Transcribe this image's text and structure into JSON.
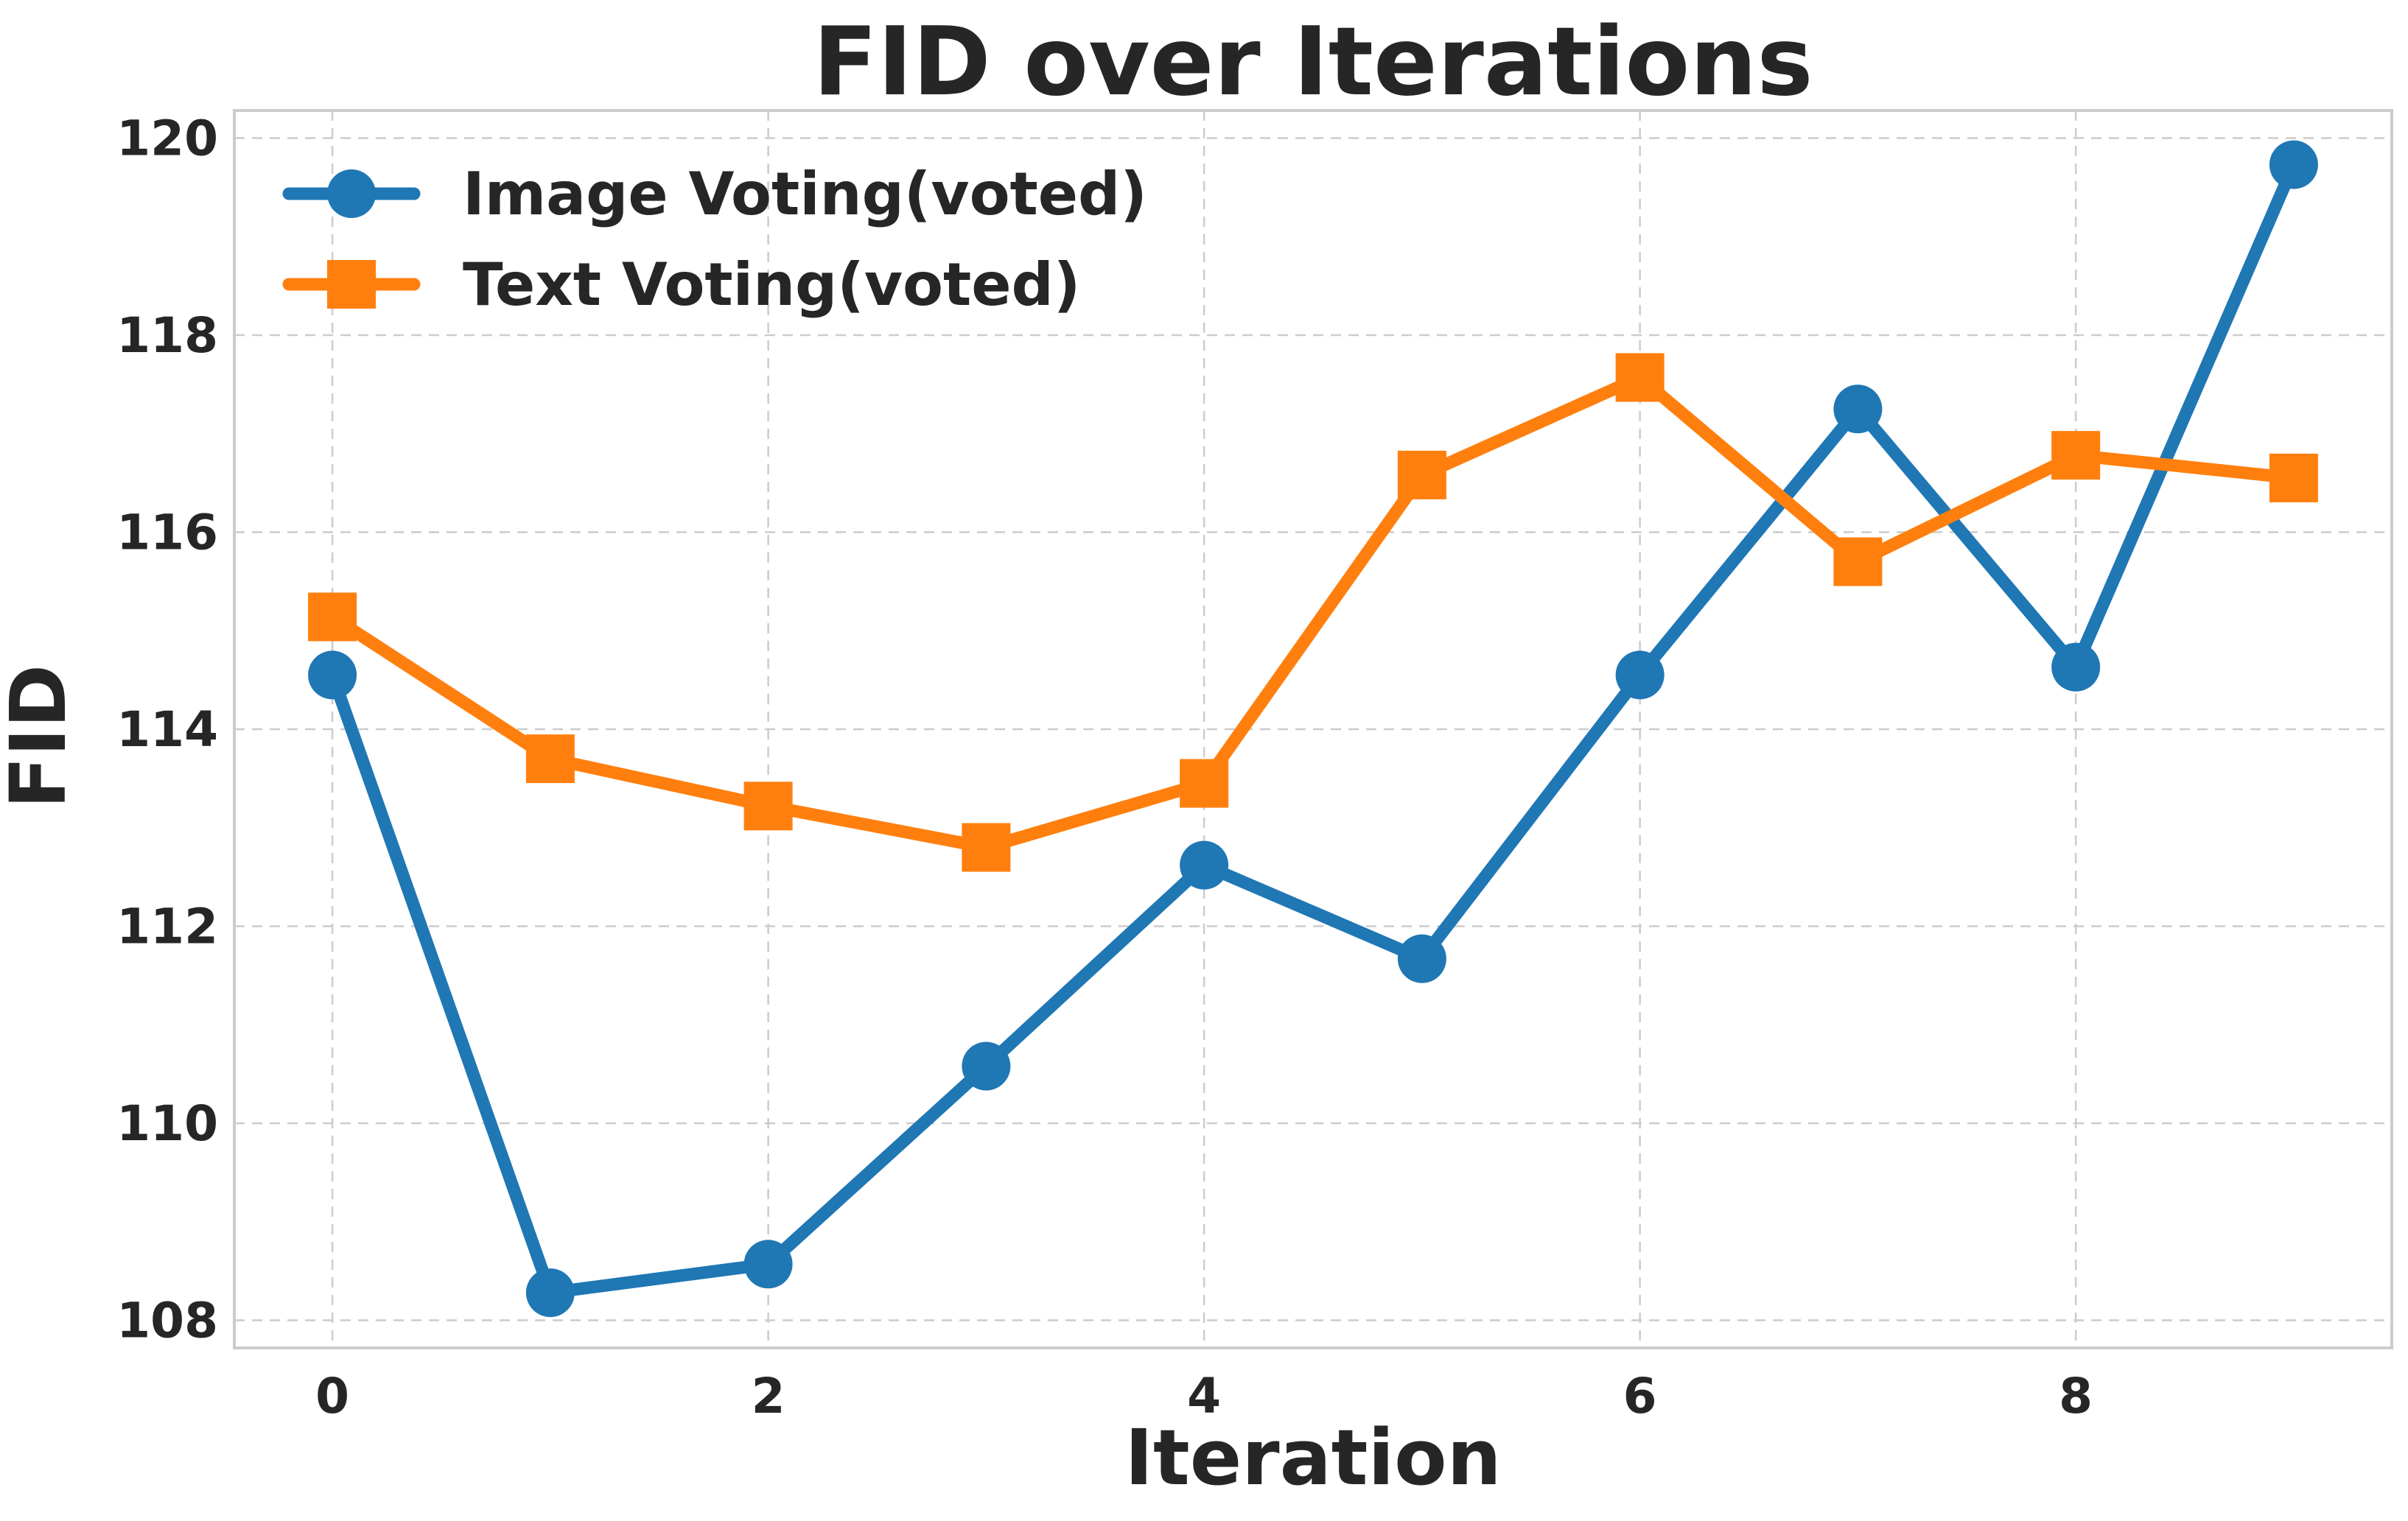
{
  "chart_data": {
    "type": "line",
    "title": "FID over Iterations",
    "xlabel": "Iteration",
    "ylabel": "FID",
    "xlim": [
      -0.45,
      9.45
    ],
    "ylim": [
      107.72,
      120.28
    ],
    "xticks": [
      0,
      2,
      4,
      6,
      8
    ],
    "yticks": [
      108,
      110,
      112,
      114,
      116,
      118,
      120
    ],
    "grid": true,
    "legend_position": "top-left",
    "x": [
      0,
      1,
      2,
      3,
      4,
      5,
      6,
      7,
      8,
      9
    ],
    "series": [
      {
        "name": "Image Voting(voted)",
        "color": "#1f77b4",
        "marker": "circle",
        "values": [
          114.55,
          108.28,
          108.57,
          110.58,
          112.62,
          111.67,
          114.55,
          117.25,
          114.63,
          119.73
        ]
      },
      {
        "name": "Text Voting(voted)",
        "color": "#ff7f0e",
        "marker": "square",
        "values": [
          115.14,
          113.7,
          113.22,
          112.8,
          113.45,
          116.58,
          117.57,
          115.7,
          116.78,
          116.55
        ]
      }
    ]
  }
}
